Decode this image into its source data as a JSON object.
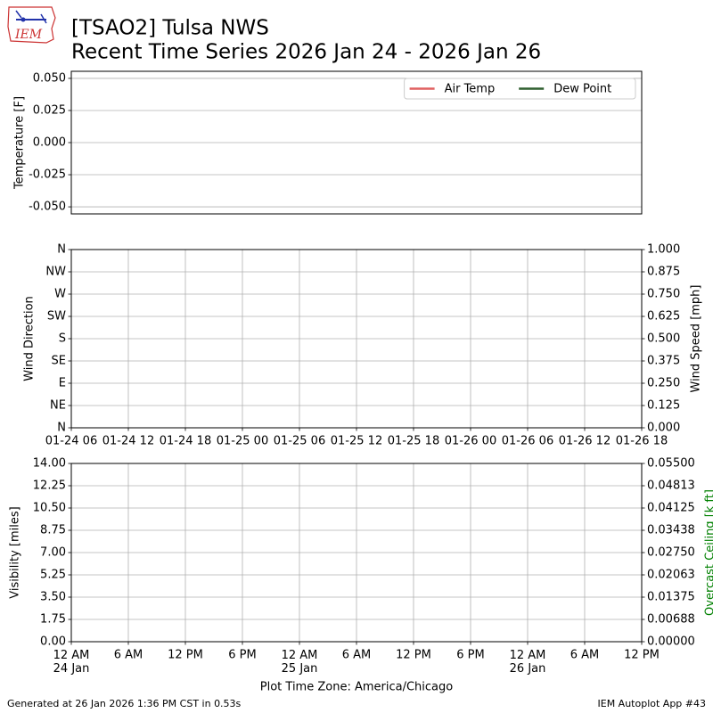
{
  "logo_text": "IEM",
  "title": "[TSAO2] Tulsa NWS",
  "subtitle": "Recent Time Series 2026 Jan 24 - 2026 Jan 26",
  "footer_left": "Generated at 26 Jan 2026 1:36 PM CST in 0.53s",
  "footer_right": "IEM Autoplot App #43",
  "chart_data": [
    {
      "type": "line",
      "ylabel": "Temperature [F]",
      "ylim": [
        -0.0555,
        0.0555
      ],
      "yticks": [
        {
          "value": 0.05,
          "label": "0.050"
        },
        0.025,
        {
          "value": 0,
          "label": "0.000"
        },
        -0.025,
        {
          "value": -0.05,
          "label": "-0.050"
        }
      ],
      "xlim": [
        "2026-01-24T06:00Z",
        "2026-01-26T18:00Z"
      ],
      "x": [],
      "series": [
        {
          "name": "Air Temp",
          "color": "#e06060",
          "values": []
        },
        {
          "name": "Dew Point",
          "color": "#2f5f2f",
          "values": []
        }
      ],
      "legend": "upper right",
      "grid": "y"
    },
    {
      "type": "line",
      "ylabel": "Wind Direction",
      "y2label": "Wind Speed [mph]",
      "ylim": [
        0,
        360
      ],
      "yticks": [
        {
          "value": 0,
          "label": "N"
        },
        {
          "value": 45,
          "label": "NE"
        },
        {
          "value": 90,
          "label": "E"
        },
        {
          "value": 135,
          "label": "SE"
        },
        {
          "value": 180,
          "label": "S"
        },
        {
          "value": 225,
          "label": "SW"
        },
        {
          "value": 270,
          "label": "W"
        },
        {
          "value": 315,
          "label": "NW"
        },
        {
          "value": 360,
          "label": "N"
        }
      ],
      "y2lim": [
        0,
        1
      ],
      "y2ticks": [
        {
          "value": 0,
          "label": "0.000"
        },
        0.125,
        {
          "value": 0.25,
          "label": "0.250"
        },
        0.375,
        {
          "value": 0.5,
          "label": "0.500"
        },
        0.625,
        {
          "value": 0.75,
          "label": "0.750"
        },
        0.875,
        {
          "value": 1,
          "label": "1.000"
        }
      ],
      "xlim": [
        "2026-01-24T06:00Z",
        "2026-01-26T18:00Z"
      ],
      "xticks": [
        {
          "value": "2026-01-24T06:00Z",
          "label": "01-24 06"
        },
        {
          "value": "2026-01-24T12:00Z",
          "label": "01-24 12"
        },
        {
          "value": "2026-01-24T18:00Z",
          "label": "01-24 18"
        },
        {
          "value": "2026-01-25T00:00Z",
          "label": "01-25 00"
        },
        {
          "value": "2026-01-25T06:00Z",
          "label": "01-25 06"
        },
        {
          "value": "2026-01-25T12:00Z",
          "label": "01-25 12"
        },
        {
          "value": "2026-01-25T18:00Z",
          "label": "01-25 18"
        },
        {
          "value": "2026-01-26T00:00Z",
          "label": "01-26 00"
        },
        {
          "value": "2026-01-26T06:00Z",
          "label": "01-26 06"
        },
        {
          "value": "2026-01-26T12:00Z",
          "label": "01-26 12"
        },
        {
          "value": "2026-01-26T18:00Z",
          "label": "01-26 18"
        }
      ],
      "grid": "both"
    },
    {
      "type": "line",
      "ylabel": "Visibility [miles]",
      "y2label": "Overcast Ceiling [k ft]",
      "y2label_color": "green",
      "xlabel": "Plot Time Zone: America/Chicago",
      "ylim": [
        0,
        14
      ],
      "yticks": [
        {
          "value": 0,
          "label": "0.00"
        },
        1.75,
        {
          "value": 3.5,
          "label": "3.50"
        },
        5.25,
        {
          "value": 7,
          "label": "7.00"
        },
        8.75,
        {
          "value": 10.5,
          "label": "10.50"
        },
        12.25,
        {
          "value": 14,
          "label": "14.00"
        }
      ],
      "y2lim": [
        0,
        0.055
      ],
      "y2ticks": [
        {
          "value": 0,
          "label": "0.00000"
        },
        {
          "value": 0.006875,
          "label": "0.00688"
        },
        {
          "value": 0.01375,
          "label": "0.01375"
        },
        {
          "value": 0.020625,
          "label": "0.02063"
        },
        {
          "value": 0.0275,
          "label": "0.02750"
        },
        {
          "value": 0.034375,
          "label": "0.03438"
        },
        {
          "value": 0.04125,
          "label": "0.04125"
        },
        {
          "value": 0.048125,
          "label": "0.04813"
        },
        {
          "value": 0.055,
          "label": "0.05500"
        }
      ],
      "xlim": [
        "2026-01-24T00:00-06:00",
        "2026-01-26T12:00-06:00"
      ],
      "xticks": [
        {
          "value": "2026-01-24T00:00-06:00",
          "label": "12 AM\n24 Jan"
        },
        {
          "value": "2026-01-24T06:00-06:00",
          "label": "6 AM"
        },
        {
          "value": "2026-01-24T12:00-06:00",
          "label": "12 PM"
        },
        {
          "value": "2026-01-24T18:00-06:00",
          "label": "6 PM"
        },
        {
          "value": "2026-01-25T00:00-06:00",
          "label": "12 AM\n25 Jan"
        },
        {
          "value": "2026-01-25T06:00-06:00",
          "label": "6 AM"
        },
        {
          "value": "2026-01-25T12:00-06:00",
          "label": "12 PM"
        },
        {
          "value": "2026-01-25T18:00-06:00",
          "label": "6 PM"
        },
        {
          "value": "2026-01-26T00:00-06:00",
          "label": "12 AM\n26 Jan"
        },
        {
          "value": "2026-01-26T06:00-06:00",
          "label": "6 AM"
        },
        {
          "value": "2026-01-26T12:00-06:00",
          "label": "12 PM"
        }
      ],
      "grid": "both"
    }
  ]
}
